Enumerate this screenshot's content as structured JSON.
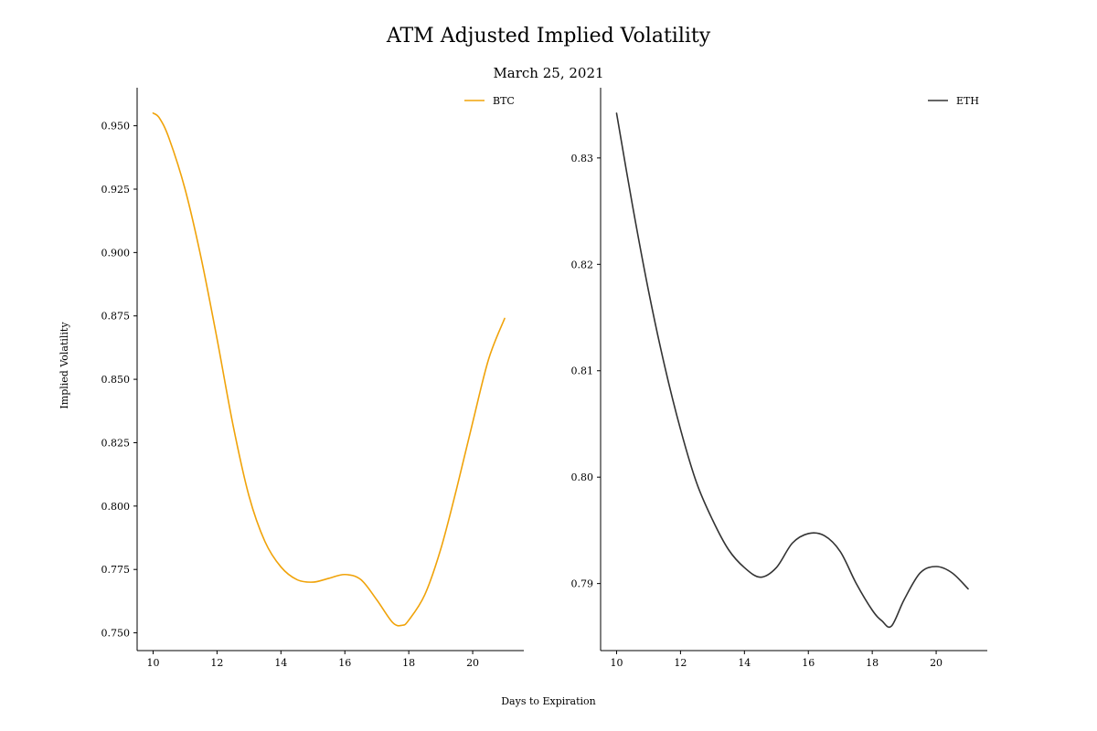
{
  "figure": {
    "title": "ATM Adjusted Implied Volatility",
    "subtitle": "March 25, 2021",
    "xlabel": "Days to Expiration",
    "ylabel": "Implied Volatility"
  },
  "chart_data": [
    {
      "type": "line",
      "title": "",
      "xlabel": "Days to Expiration",
      "ylabel": "Implied Volatility",
      "xlim": [
        9.5,
        21.6
      ],
      "ylim": [
        0.743,
        0.965
      ],
      "xticks": [
        10,
        12,
        14,
        16,
        18,
        20
      ],
      "xtick_labels": [
        "10",
        "12",
        "14",
        "16",
        "18",
        "20"
      ],
      "yticks": [
        0.75,
        0.775,
        0.8,
        0.825,
        0.85,
        0.875,
        0.9,
        0.925,
        0.95
      ],
      "ytick_labels": [
        "0.750",
        "0.775",
        "0.800",
        "0.825",
        "0.850",
        "0.875",
        "0.900",
        "0.925",
        "0.950"
      ],
      "grid": false,
      "legend_position": "top-right",
      "series": [
        {
          "name": "BTC",
          "color": "#f0a30a",
          "x": [
            10,
            10.2,
            10.5,
            11,
            11.5,
            12,
            12.5,
            13,
            13.5,
            14,
            14.5,
            15,
            15.5,
            16,
            16.5,
            17,
            17.5,
            17.8,
            18,
            18.5,
            19,
            19.5,
            20,
            20.5,
            21
          ],
          "y": [
            0.955,
            0.953,
            0.945,
            0.925,
            0.898,
            0.866,
            0.832,
            0.804,
            0.786,
            0.776,
            0.771,
            0.77,
            0.7715,
            0.773,
            0.771,
            0.763,
            0.754,
            0.753,
            0.755,
            0.765,
            0.783,
            0.807,
            0.833,
            0.858,
            0.874
          ]
        }
      ]
    },
    {
      "type": "line",
      "title": "",
      "xlabel": "Days to Expiration",
      "ylabel": "",
      "xlim": [
        9.5,
        21.6
      ],
      "ylim": [
        0.7837,
        0.8366
      ],
      "xticks": [
        10,
        12,
        14,
        16,
        18,
        20
      ],
      "xtick_labels": [
        "10",
        "12",
        "14",
        "16",
        "18",
        "20"
      ],
      "yticks": [
        0.79,
        0.8,
        0.81,
        0.82,
        0.83
      ],
      "ytick_labels": [
        "0.79",
        "0.80",
        "0.81",
        "0.82",
        "0.83"
      ],
      "grid": false,
      "legend_position": "top-right",
      "series": [
        {
          "name": "ETH",
          "color": "#333333",
          "x": [
            10,
            10.5,
            11,
            11.5,
            12,
            12.5,
            13,
            13.5,
            14,
            14.5,
            15,
            15.5,
            16,
            16.5,
            17,
            17.5,
            18,
            18.3,
            18.6,
            19,
            19.5,
            20,
            20.5,
            21
          ],
          "y": [
            0.8342,
            0.8255,
            0.8175,
            0.8105,
            0.8045,
            0.7995,
            0.796,
            0.7932,
            0.7915,
            0.7906,
            0.7915,
            0.7938,
            0.7947,
            0.7945,
            0.793,
            0.79,
            0.7875,
            0.7865,
            0.786,
            0.7885,
            0.791,
            0.7916,
            0.791,
            0.7895
          ]
        }
      ]
    }
  ]
}
